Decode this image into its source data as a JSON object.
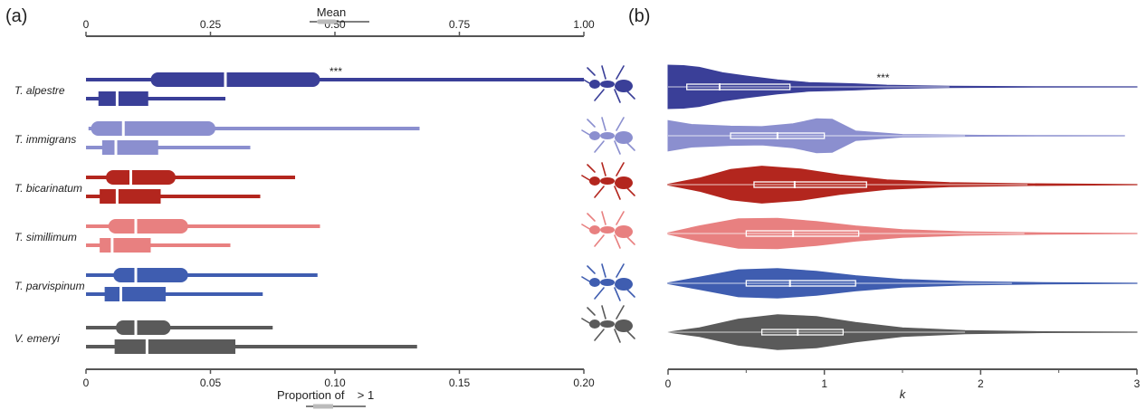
{
  "panel_a_label": "(a)",
  "panel_b_label": "(b)",
  "chart_data": [
    {
      "panel": "(a)",
      "type": "boxplot",
      "top_axis": {
        "title": "Mean",
        "range": [
          0,
          1
        ],
        "ticks": [
          0,
          0.25,
          0.5,
          0.75,
          1.0
        ],
        "tick_labels": [
          "0",
          "0.25",
          "0.50",
          "0.75",
          "1.00"
        ]
      },
      "bottom_axis": {
        "title": "Proportion of",
        "title_suffix": "> 1",
        "range": [
          0,
          0.2
        ],
        "ticks": [
          0,
          0.05,
          0.1,
          0.15,
          0.2
        ],
        "tick_labels": [
          "0",
          "0.05",
          "0.10",
          "0.15",
          "0.20"
        ]
      },
      "significance_label": "***",
      "significance_species_index": 0,
      "species": [
        {
          "label": "T. alpestre",
          "color": "#3a3f98",
          "mean": {
            "min": 0.0,
            "q1": 0.13,
            "median": 0.28,
            "q3": 0.47,
            "max": 1.0
          },
          "proportion": {
            "min": 0.0,
            "q1": 0.005,
            "median": 0.0125,
            "q3": 0.025,
            "max": 0.056
          }
        },
        {
          "label": "T. immigrans",
          "color": "#8b8fcf",
          "mean": {
            "min": 0.005,
            "q1": 0.01,
            "median": 0.075,
            "q3": 0.26,
            "max": 0.67
          },
          "proportion": {
            "min": 0.0,
            "q1": 0.0065,
            "median": 0.012,
            "q3": 0.029,
            "max": 0.066
          }
        },
        {
          "label": "T. bicarinatum",
          "color": "#b3261e",
          "mean": {
            "min": 0.0,
            "q1": 0.04,
            "median": 0.09,
            "q3": 0.18,
            "max": 0.42
          },
          "proportion": {
            "min": 0.0,
            "q1": 0.0055,
            "median": 0.0125,
            "q3": 0.03,
            "max": 0.07
          }
        },
        {
          "label": "T. simillimum",
          "color": "#e88080",
          "mean": {
            "min": 0.0,
            "q1": 0.045,
            "median": 0.1,
            "q3": 0.205,
            "max": 0.47
          },
          "proportion": {
            "min": 0.0,
            "q1": 0.0055,
            "median": 0.0105,
            "q3": 0.026,
            "max": 0.058
          }
        },
        {
          "label": "T. parvispinum",
          "color": "#3f5db0",
          "mean": {
            "min": 0.0,
            "q1": 0.055,
            "median": 0.1,
            "q3": 0.205,
            "max": 0.465
          },
          "proportion": {
            "min": 0.0,
            "q1": 0.0075,
            "median": 0.014,
            "q3": 0.032,
            "max": 0.071
          }
        },
        {
          "label": "V. emeryi",
          "color": "#5a5a5a",
          "mean": {
            "min": 0.0,
            "q1": 0.06,
            "median": 0.1,
            "q3": 0.17,
            "max": 0.375
          },
          "proportion": {
            "min": 0.0,
            "q1": 0.0115,
            "median": 0.0245,
            "q3": 0.06,
            "max": 0.133
          }
        }
      ]
    },
    {
      "panel": "(b)",
      "type": "violin",
      "x_axis": {
        "title": "k",
        "range": [
          0,
          3
        ],
        "ticks": [
          0,
          1,
          2,
          3
        ],
        "tick_labels": [
          "0",
          "1",
          "2",
          "3"
        ]
      },
      "significance_label": "***",
      "significance_species_index": 0,
      "species": [
        {
          "label": "T. alpestre",
          "color": "#3a3f98",
          "q1": 0.12,
          "median": 0.33,
          "q3": 0.78,
          "whisker_high": 1.8,
          "max": 3.0,
          "density": [
            [
              0.0,
              1.0
            ],
            [
              0.1,
              0.98
            ],
            [
              0.2,
              0.9
            ],
            [
              0.35,
              0.65
            ],
            [
              0.5,
              0.5
            ],
            [
              0.7,
              0.32
            ],
            [
              0.9,
              0.2
            ],
            [
              1.05,
              0.17
            ],
            [
              1.2,
              0.14
            ],
            [
              1.4,
              0.08
            ],
            [
              1.8,
              0.03
            ],
            [
              2.4,
              0.01
            ],
            [
              3.0,
              0.005
            ]
          ]
        },
        {
          "label": "T. immigrans",
          "color": "#8b8fcf",
          "q1": 0.4,
          "median": 0.7,
          "q3": 1.0,
          "whisker_high": 1.9,
          "max": 2.92,
          "density": [
            [
              0.0,
              0.7
            ],
            [
              0.15,
              0.52
            ],
            [
              0.4,
              0.44
            ],
            [
              0.6,
              0.42
            ],
            [
              0.8,
              0.55
            ],
            [
              0.95,
              0.78
            ],
            [
              1.05,
              0.76
            ],
            [
              1.2,
              0.22
            ],
            [
              1.5,
              0.06
            ],
            [
              2.0,
              0.02
            ],
            [
              2.5,
              0.01
            ],
            [
              2.92,
              0.005
            ]
          ]
        },
        {
          "label": "T. bicarinatum",
          "color": "#b3261e",
          "q1": 0.55,
          "median": 0.81,
          "q3": 1.27,
          "whisker_high": 2.3,
          "max": 3.0,
          "density": [
            [
              0.0,
              0.02
            ],
            [
              0.2,
              0.3
            ],
            [
              0.4,
              0.7
            ],
            [
              0.6,
              0.85
            ],
            [
              0.85,
              0.72
            ],
            [
              1.1,
              0.45
            ],
            [
              1.4,
              0.22
            ],
            [
              1.8,
              0.09
            ],
            [
              2.3,
              0.04
            ],
            [
              3.0,
              0.005
            ]
          ]
        },
        {
          "label": "T. simillimum",
          "color": "#e88080",
          "q1": 0.5,
          "median": 0.8,
          "q3": 1.22,
          "whisker_high": 2.28,
          "max": 3.0,
          "density": [
            [
              0.0,
              0.03
            ],
            [
              0.2,
              0.35
            ],
            [
              0.45,
              0.68
            ],
            [
              0.7,
              0.7
            ],
            [
              0.95,
              0.55
            ],
            [
              1.2,
              0.35
            ],
            [
              1.5,
              0.18
            ],
            [
              1.9,
              0.08
            ],
            [
              2.4,
              0.03
            ],
            [
              3.0,
              0.005
            ]
          ]
        },
        {
          "label": "T. parvispinum",
          "color": "#3f5db0",
          "q1": 0.5,
          "median": 0.78,
          "q3": 1.2,
          "whisker_high": 2.2,
          "max": 3.0,
          "density": [
            [
              0.0,
              0.02
            ],
            [
              0.2,
              0.28
            ],
            [
              0.45,
              0.62
            ],
            [
              0.7,
              0.68
            ],
            [
              0.95,
              0.55
            ],
            [
              1.2,
              0.35
            ],
            [
              1.5,
              0.18
            ],
            [
              1.9,
              0.08
            ],
            [
              2.4,
              0.03
            ],
            [
              3.0,
              0.005
            ]
          ]
        },
        {
          "label": "V. emeryi",
          "color": "#5a5a5a",
          "q1": 0.6,
          "median": 0.83,
          "q3": 1.12,
          "whisker_high": 1.9,
          "max": 3.0,
          "density": [
            [
              0.0,
              0.0
            ],
            [
              0.2,
              0.2
            ],
            [
              0.45,
              0.6
            ],
            [
              0.7,
              0.8
            ],
            [
              0.95,
              0.72
            ],
            [
              1.2,
              0.45
            ],
            [
              1.5,
              0.2
            ],
            [
              1.9,
              0.07
            ],
            [
              2.4,
              0.02
            ],
            [
              3.0,
              0.005
            ]
          ]
        }
      ]
    }
  ]
}
